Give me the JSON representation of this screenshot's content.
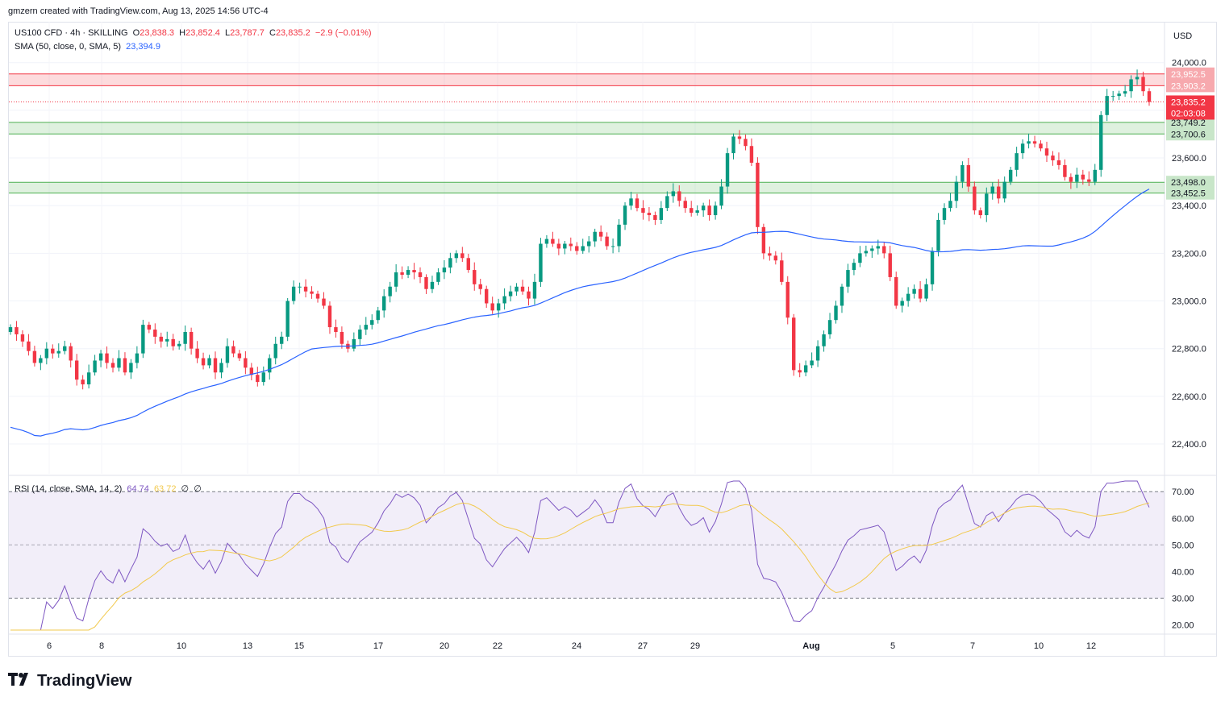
{
  "header": {
    "created_by": "gmzern created with TradingView.com, Aug 13, 2025 14:56 UTC-4"
  },
  "footer": {
    "brand": "TradingView"
  },
  "legend": {
    "symbol": "US100 CFD · 4h · SKILLING",
    "o_label": "O",
    "o": "23,838.3",
    "h_label": "H",
    "h": "23,852.4",
    "l_label": "L",
    "l": "23,787.7",
    "c_label": "C",
    "c": "23,835.2",
    "change": "−2.9 (−0.01%)",
    "sma_label": "SMA (50, close, 0, SMA, 5)",
    "sma_value": "23,394.9",
    "rsi_label": "RSI (14, close, SMA, 14, 2)",
    "rsi_value": "64.74",
    "rsi_sma_value": "63.72",
    "rsi_extra1": "∅",
    "rsi_extra2": "∅"
  },
  "colors": {
    "up": "#089981",
    "down": "#f23645",
    "sma": "#2962ff",
    "rsi": "#7e57c2",
    "rsi_sma": "#f2c94c"
  },
  "chart_data": {
    "type": "candlestick",
    "currency": "USD",
    "price_axis": {
      "ticks": [
        "24,000.0",
        "23,800.0",
        "23,600.0",
        "23,400.0",
        "23,200.0",
        "23,000.0",
        "22,800.0",
        "22,600.0",
        "22,400.0"
      ],
      "tick_values": [
        24000,
        23800,
        23600,
        23400,
        23200,
        23000,
        22800,
        22600,
        22400
      ],
      "range": [
        22275,
        24070
      ]
    },
    "time_axis": {
      "labels": [
        "6",
        "8",
        "10",
        "13",
        "15",
        "17",
        "20",
        "22",
        "24",
        "27",
        "29",
        "Aug",
        "5",
        "7",
        "10",
        "12"
      ]
    },
    "zones": [
      {
        "color": "red",
        "top": 23952.5,
        "bottom": 23903.2,
        "top_label": "23,952.5",
        "bottom_label": "23,903.2"
      },
      {
        "color": "green",
        "top": 23749.2,
        "bottom": 23700.6,
        "top_label": "23,749.2",
        "bottom_label": "23,700.6"
      },
      {
        "color": "green",
        "top": 23498.0,
        "bottom": 23452.5,
        "top_label": "23,498.0",
        "bottom_label": "23,452.5"
      }
    ],
    "last_price": {
      "value": 23835.2,
      "label": "23,835.2",
      "countdown": "02:03:08"
    },
    "sma_value": 23394.9,
    "rsi_axis": {
      "ticks": [
        "70.00",
        "60.00",
        "50.00",
        "40.00",
        "30.00",
        "20.00"
      ],
      "tick_values": [
        70,
        60,
        50,
        40,
        30,
        20
      ],
      "upper": 70,
      "lower": 30,
      "range": [
        18,
        74
      ]
    },
    "close": [
      22890,
      22860,
      22830,
      22790,
      22740,
      22760,
      22800,
      22780,
      22790,
      22810,
      22750,
      22670,
      22650,
      22700,
      22750,
      22780,
      22740,
      22720,
      22760,
      22700,
      22740,
      22780,
      22900,
      22880,
      22850,
      22830,
      22840,
      22810,
      22820,
      22870,
      22800,
      22760,
      22730,
      22760,
      22700,
      22740,
      22810,
      22780,
      22760,
      22720,
      22690,
      22660,
      22700,
      22760,
      22820,
      22850,
      23000,
      23060,
      23060,
      23040,
      23030,
      23010,
      22980,
      22890,
      22870,
      22820,
      22800,
      22840,
      22880,
      22900,
      22920,
      22960,
      23020,
      23060,
      23120,
      23110,
      23130,
      23120,
      23100,
      23050,
      23080,
      23120,
      23140,
      23180,
      23200,
      23180,
      23130,
      23070,
      23050,
      22990,
      22960,
      22990,
      23020,
      23040,
      23060,
      23040,
      23010,
      23080,
      23240,
      23260,
      23240,
      23220,
      23240,
      23230,
      23210,
      23230,
      23250,
      23290,
      23270,
      23230,
      23230,
      23320,
      23400,
      23430,
      23390,
      23370,
      23360,
      23340,
      23390,
      23440,
      23460,
      23420,
      23390,
      23370,
      23380,
      23400,
      23360,
      23400,
      23480,
      23620,
      23690,
      23680,
      23650,
      23580,
      23310,
      23200,
      23190,
      23170,
      23080,
      22930,
      22710,
      22700,
      22730,
      22750,
      22810,
      22860,
      22920,
      22980,
      23060,
      23130,
      23160,
      23200,
      23210,
      23220,
      23230,
      23200,
      23100,
      22980,
      23000,
      23030,
      23050,
      23010,
      23070,
      23210,
      23340,
      23390,
      23420,
      23500,
      23570,
      23480,
      23380,
      23360,
      23450,
      23480,
      23430,
      23500,
      23550,
      23620,
      23660,
      23670,
      23660,
      23640,
      23610,
      23590,
      23570,
      23520,
      23500,
      23530,
      23510,
      23500,
      23550,
      23780,
      23860,
      23860,
      23870,
      23880,
      23930,
      23940,
      23880,
      23835
    ]
  }
}
